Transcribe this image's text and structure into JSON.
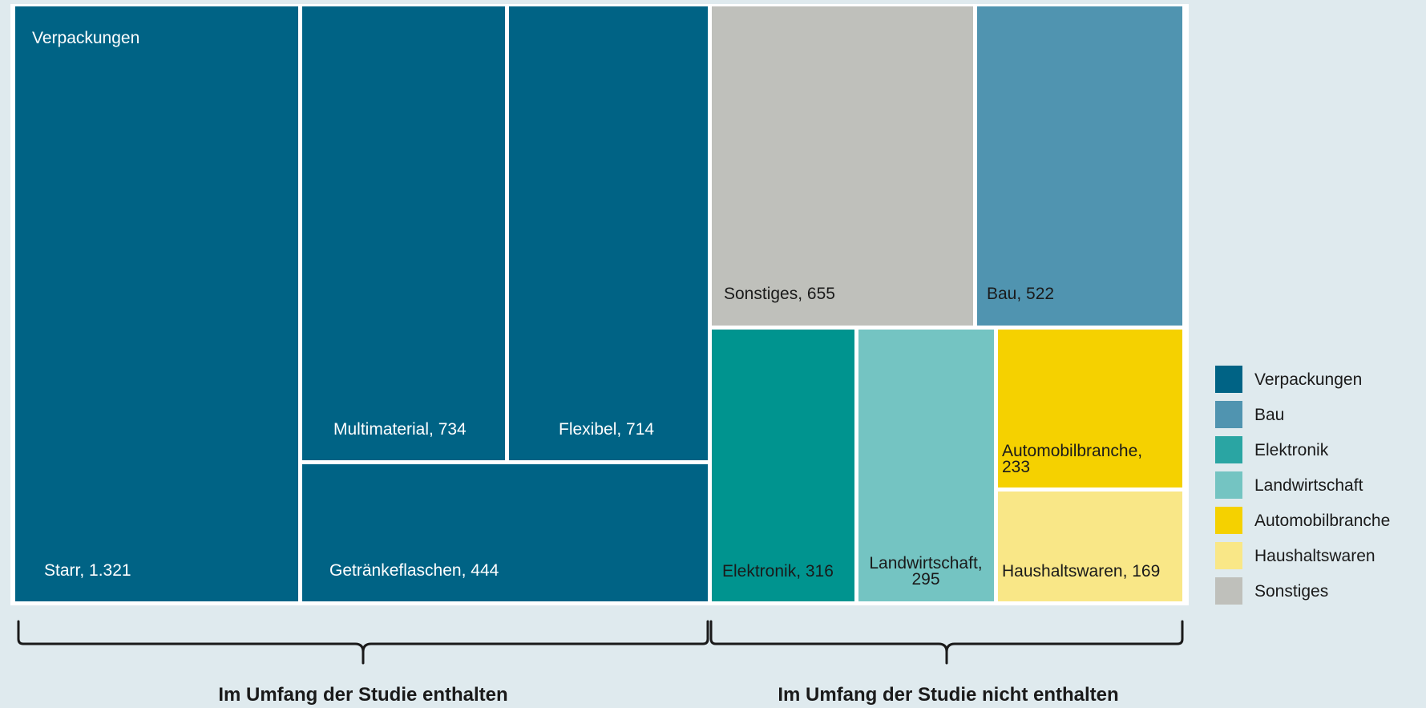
{
  "chart_data": {
    "type": "treemap",
    "groups": [
      {
        "name": "Verpackungen",
        "color": "#006385",
        "label_color": "#ffffff",
        "children": [
          {
            "label": "Starr, 1.321",
            "value": 1321
          },
          {
            "label": "Multimaterial, 734",
            "value": 734
          },
          {
            "label": "Flexibel, 714",
            "value": 714
          },
          {
            "label": "Getränkeflaschen, 444",
            "value": 444
          }
        ]
      },
      {
        "name": "Sonstiges",
        "color": "#bfc0bb",
        "label_color": "#1a1a1a",
        "children": [
          {
            "label": "Sonstiges, 655",
            "value": 655
          }
        ]
      },
      {
        "name": "Bau",
        "color": "#5094b0",
        "label_color": "#1a1a1a",
        "children": [
          {
            "label": "Bau, 522",
            "value": 522
          }
        ]
      },
      {
        "name": "Elektronik",
        "color": "#00948f",
        "label_color": "#1a1a1a",
        "children": [
          {
            "label": "Elektronik, 316",
            "value": 316
          }
        ]
      },
      {
        "name": "Landwirtschaft",
        "color": "#74c4c2",
        "label_color": "#1a1a1a",
        "children": [
          {
            "label": "Landwirtschaft, 295",
            "value": 295
          }
        ]
      },
      {
        "name": "Automobilbranche",
        "color": "#f5d100",
        "label_color": "#1a1a1a",
        "children": [
          {
            "label": "Automobilbranche, 233",
            "value": 233
          }
        ]
      },
      {
        "name": "Haushaltswaren",
        "color": "#f9e787",
        "label_color": "#1a1a1a",
        "children": [
          {
            "label": "Haushaltswaren, 169",
            "value": 169
          }
        ]
      }
    ],
    "legend": {
      "placement": "right",
      "items": [
        {
          "label": "Verpackungen",
          "color": "#006385"
        },
        {
          "label": "Bau",
          "color": "#5094b0"
        },
        {
          "label": "Elektronik",
          "color": "#2aa5a3"
        },
        {
          "label": "Landwirtschaft",
          "color": "#74c4c2"
        },
        {
          "label": "Automobilbranche",
          "color": "#f5d100"
        },
        {
          "label": "Haushaltswaren",
          "color": "#f9e787"
        },
        {
          "label": "Sonstiges",
          "color": "#bfc0bb"
        }
      ]
    },
    "brackets": [
      {
        "label": "Im Umfang der Studie enthalten"
      },
      {
        "label": "Im Umfang der Studie nicht enthalten"
      }
    ]
  }
}
